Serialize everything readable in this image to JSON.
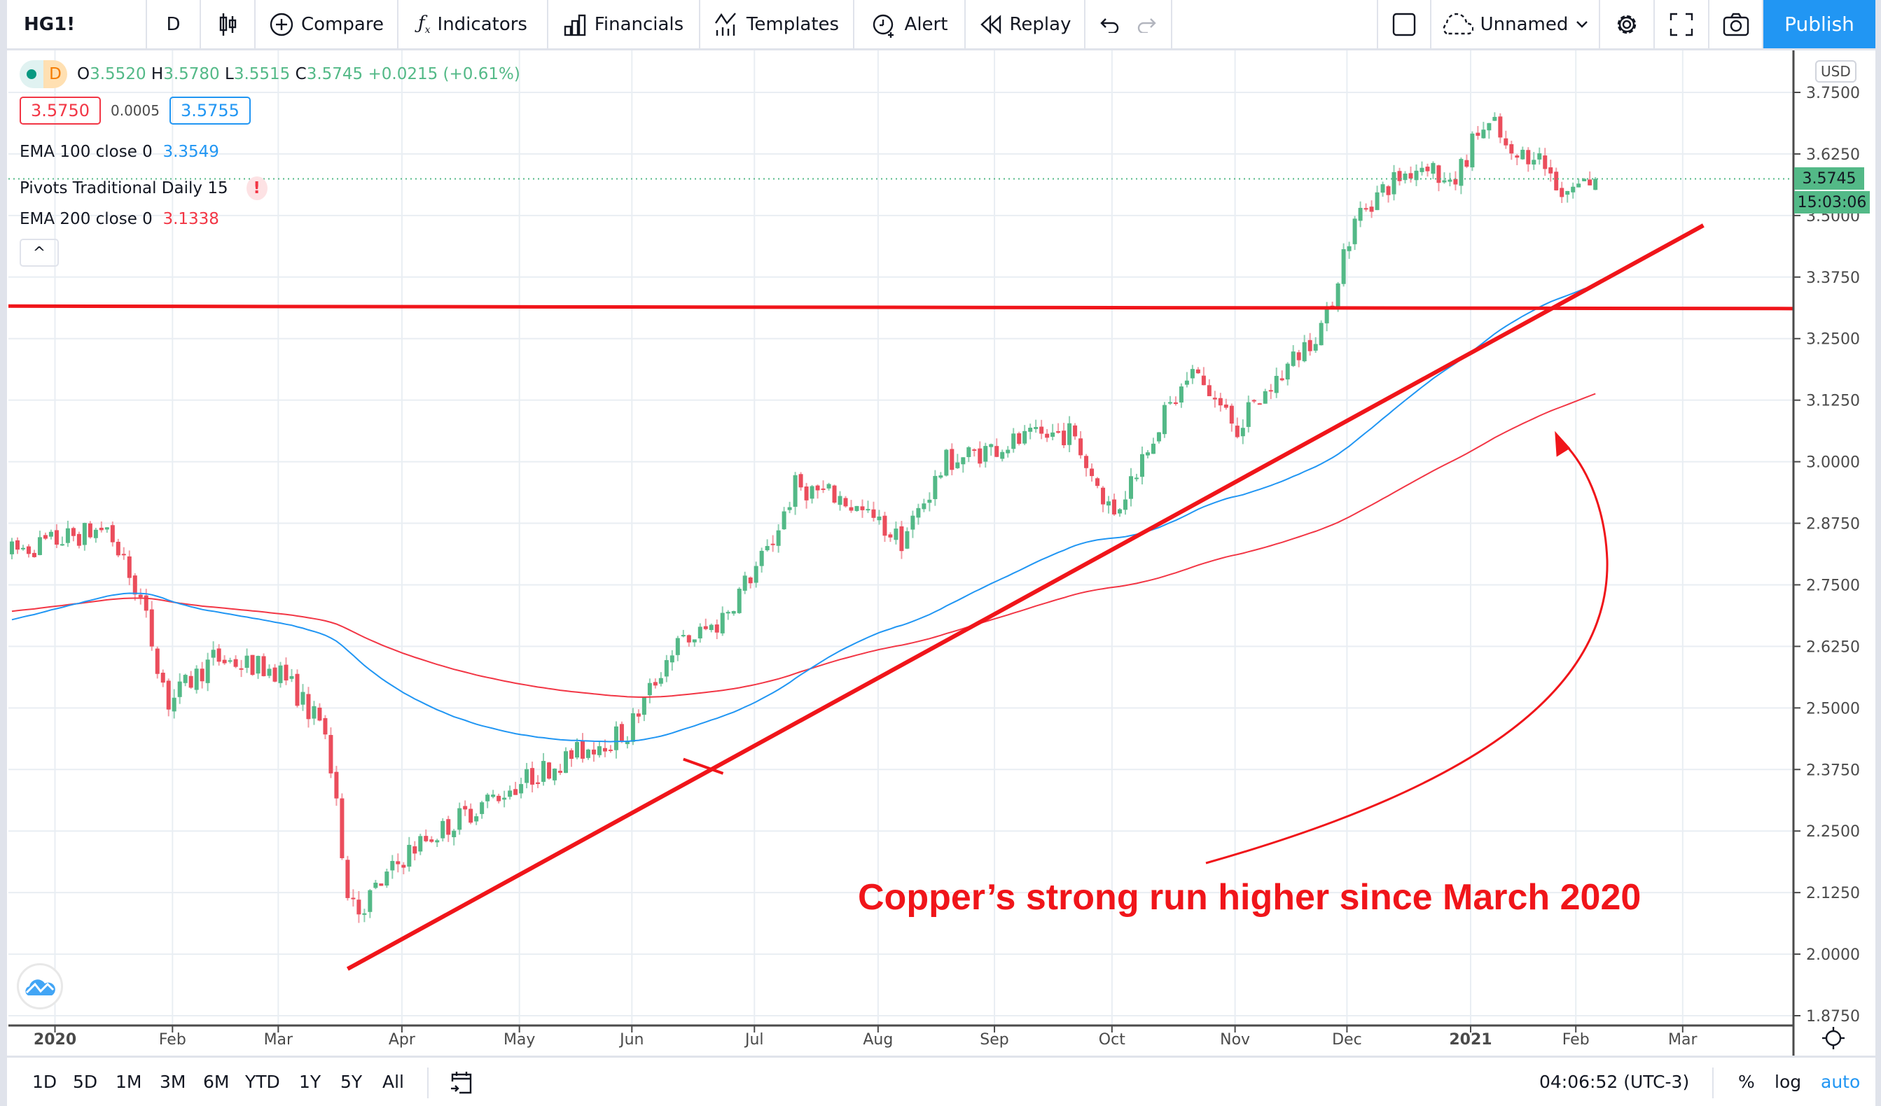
{
  "toolbar": {
    "symbol": "HG1!",
    "interval": "D",
    "compare": "Compare",
    "indicators": "Indicators",
    "financials": "Financials",
    "templates": "Templates",
    "alert": "Alert",
    "replay": "Replay",
    "layout_name": "Unnamed",
    "publish": "Publish"
  },
  "legend": {
    "interval_badge": "D",
    "o_label": "O",
    "o": "3.5520",
    "h_label": "H",
    "h": "3.5780",
    "l_label": "L",
    "l": "3.5515",
    "c_label": "C",
    "c": "3.5745",
    "change": "+0.0215 (+0.61%)",
    "bid": "3.5750",
    "spread": "0.0005",
    "ask": "3.5755",
    "ema100_label": "EMA 100 close 0",
    "ema100_value": "3.3549",
    "pivots_label": "Pivots Traditional Daily 15",
    "pivots_warning": "!",
    "ema200_label": "EMA 200 close 0",
    "ema200_value": "3.1338",
    "collapse": "^"
  },
  "price_axis": {
    "currency": "USD",
    "last_price": "3.5745",
    "countdown": "15:03:06"
  },
  "annotation": "Copper’s strong run higher since March 2020",
  "bottom": {
    "ranges": [
      "1D",
      "5D",
      "1M",
      "3M",
      "6M",
      "YTD",
      "1Y",
      "5Y",
      "All"
    ],
    "clock": "04:06:52 (UTC-3)",
    "percent": "%",
    "log": "log",
    "auto": "auto"
  },
  "colors": {
    "up": "#53b987",
    "down": "#eb4d5c",
    "ema100": "#2196f3",
    "ema200": "#f23645",
    "drawing": "#f0151a",
    "accent": "#2196f3"
  },
  "chart_data": {
    "type": "candlestick",
    "symbol": "HG1!",
    "ylim": [
      1.875,
      3.75
    ],
    "y_ticks": [
      "3.7500",
      "3.6250",
      "3.5000",
      "3.3750",
      "3.2500",
      "3.1250",
      "3.0000",
      "2.8750",
      "2.7500",
      "2.6250",
      "2.5000",
      "2.3750",
      "2.2500",
      "2.1250",
      "2.0000",
      "1.8750"
    ],
    "x_ticks": [
      {
        "label": "2020",
        "bar": 7.7,
        "bold": true
      },
      {
        "label": "Feb",
        "bar": 28.7
      },
      {
        "label": "Mar",
        "bar": 47.6
      },
      {
        "label": "Apr",
        "bar": 69.7
      },
      {
        "label": "May",
        "bar": 90.7
      },
      {
        "label": "Jun",
        "bar": 110.8
      },
      {
        "label": "Jul",
        "bar": 132.7
      },
      {
        "label": "Aug",
        "bar": 154.8
      },
      {
        "label": "Sep",
        "bar": 175.6
      },
      {
        "label": "Oct",
        "bar": 196.6
      },
      {
        "label": "Nov",
        "bar": 218.6
      },
      {
        "label": "Dec",
        "bar": 238.6
      },
      {
        "label": "2021",
        "bar": 260.7,
        "bold": true
      },
      {
        "label": "Feb",
        "bar": 279.5
      },
      {
        "label": "Mar",
        "bar": 298.6
      }
    ],
    "bars": 284,
    "close_keypoints": [
      [
        0,
        2.817
      ],
      [
        17,
        2.866
      ],
      [
        23,
        2.72
      ],
      [
        28,
        2.51
      ],
      [
        36,
        2.6
      ],
      [
        48,
        2.575
      ],
      [
        56,
        2.45
      ],
      [
        60,
        2.135
      ],
      [
        62,
        2.09
      ],
      [
        71,
        2.21
      ],
      [
        84,
        2.306
      ],
      [
        96,
        2.38
      ],
      [
        105,
        2.43
      ],
      [
        110,
        2.45
      ],
      [
        118,
        2.62
      ],
      [
        126,
        2.67
      ],
      [
        135,
        2.817
      ],
      [
        140,
        2.95
      ],
      [
        148,
        2.927
      ],
      [
        159,
        2.84
      ],
      [
        167,
        3.0
      ],
      [
        178,
        3.037
      ],
      [
        189,
        3.06
      ],
      [
        197,
        2.89
      ],
      [
        204,
        3.06
      ],
      [
        211,
        3.18
      ],
      [
        219,
        3.07
      ],
      [
        229,
        3.207
      ],
      [
        235,
        3.29
      ],
      [
        238,
        3.426
      ],
      [
        241,
        3.51
      ],
      [
        247,
        3.572
      ],
      [
        253,
        3.61
      ],
      [
        257,
        3.55
      ],
      [
        262,
        3.67
      ],
      [
        265,
        3.68
      ],
      [
        268,
        3.61
      ],
      [
        272,
        3.633
      ],
      [
        277,
        3.55
      ],
      [
        283,
        3.5745
      ]
    ],
    "last_bar": {
      "open": 3.552,
      "high": 3.578,
      "low": 3.5515,
      "close": 3.5745
    },
    "ema_seeds": {
      "ema100": 2.676,
      "ema200": 2.695
    },
    "drawings": {
      "horizontal_line": {
        "price_start": 3.316,
        "price_end": 3.311
      },
      "trend_line": {
        "from": [
          60,
          1.97
        ],
        "to": [
          302.3,
          3.48
        ]
      },
      "tick_mark": {
        "from": [
          120,
          2.396
        ],
        "to": [
          127.1,
          2.367
        ]
      }
    }
  }
}
